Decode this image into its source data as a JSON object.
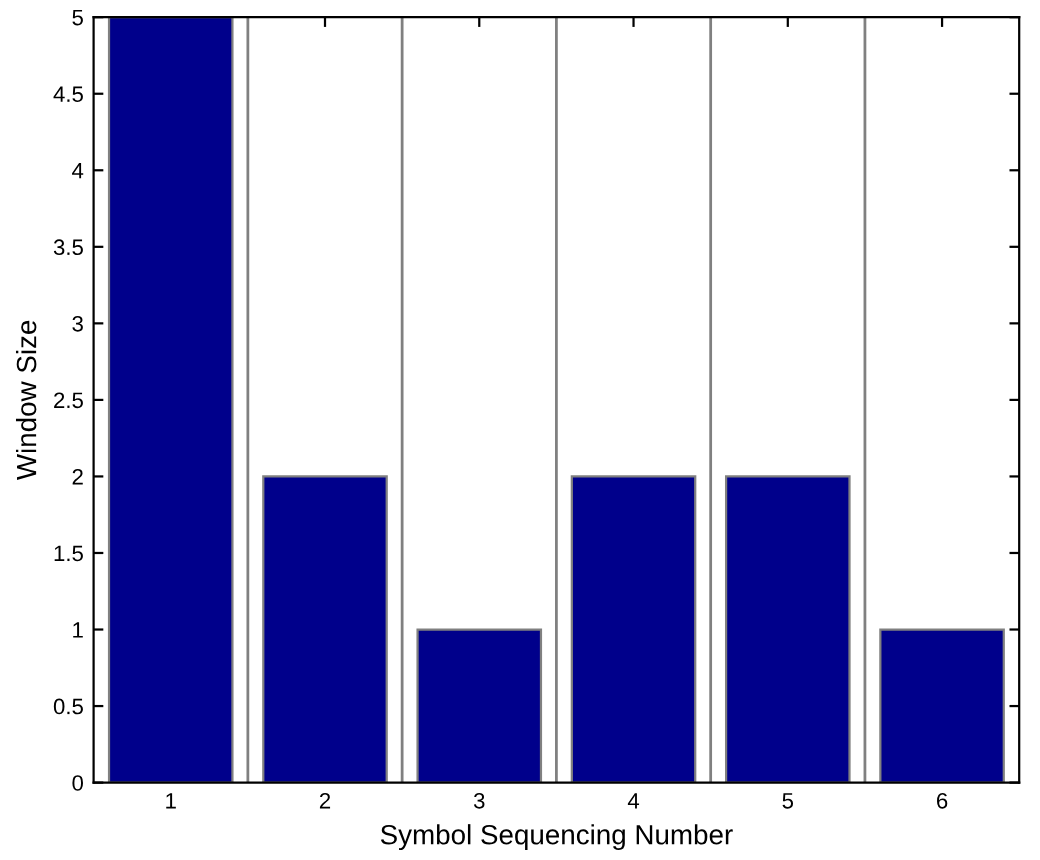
{
  "chart_data": {
    "type": "bar",
    "xlabel": "Symbol Sequencing Number",
    "ylabel": "Window Size",
    "x": [
      1,
      2,
      3,
      4,
      5,
      6
    ],
    "values": [
      5,
      2,
      1,
      2,
      2,
      1
    ],
    "color": "#00008b",
    "xlim": [
      0.5,
      6.5
    ],
    "xticks": [
      1,
      2,
      3,
      4,
      5,
      6
    ],
    "ylim": [
      0,
      5
    ],
    "yticks": [
      0,
      0.5,
      1,
      1.5,
      2,
      2.5,
      3,
      3.5,
      4,
      4.5,
      5
    ],
    "grid": false,
    "ref_lines": [
      {
        "axis": "x",
        "value": 1.5,
        "color": "#808080"
      },
      {
        "axis": "x",
        "value": 2.5,
        "color": "#808080"
      },
      {
        "axis": "x",
        "value": 3.5,
        "color": "#808080"
      },
      {
        "axis": "x",
        "value": 4.5,
        "color": "#808080"
      },
      {
        "axis": "x",
        "value": 5.5,
        "color": "#808080"
      }
    ]
  }
}
